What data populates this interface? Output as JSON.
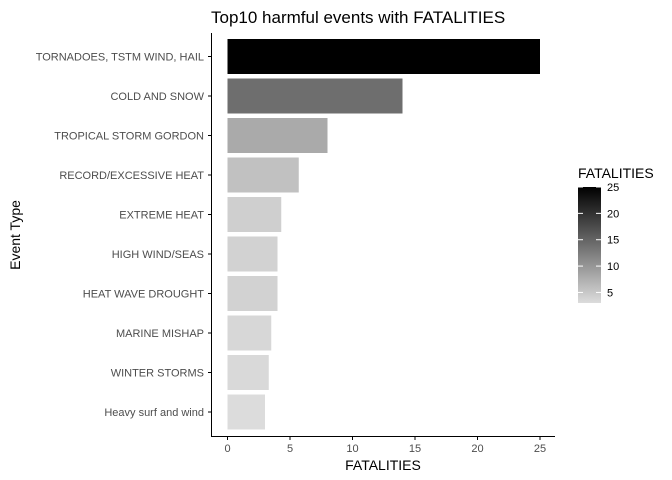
{
  "chart_data": {
    "type": "bar",
    "orientation": "horizontal",
    "title": "Top10 harmful events with FATALITIES",
    "xlabel": "FATALITIES",
    "ylabel": "Event Type",
    "xlim": [
      0,
      25
    ],
    "xticks": [
      "0",
      "5",
      "10",
      "15",
      "20",
      "25"
    ],
    "grid": false,
    "legend_position": "right",
    "categories": [
      "TORNADOES, TSTM WIND, HAIL",
      "COLD AND SNOW",
      "TROPICAL STORM GORDON",
      "RECORD/EXCESSIVE HEAT",
      "EXTREME HEAT",
      "HIGH WIND/SEAS",
      "HEAT WAVE DROUGHT",
      "MARINE MISHAP",
      "WINTER STORMS",
      "Heavy surf and wind"
    ],
    "values": [
      25,
      14,
      8,
      5.7,
      4.3,
      4,
      4,
      3.5,
      3.3,
      3
    ],
    "legend": {
      "title": "FATALITIES",
      "ticks": [
        "25",
        "20",
        "15",
        "10",
        "5"
      ],
      "low_color": "#dcdcdc",
      "high_color": "#000000"
    }
  }
}
